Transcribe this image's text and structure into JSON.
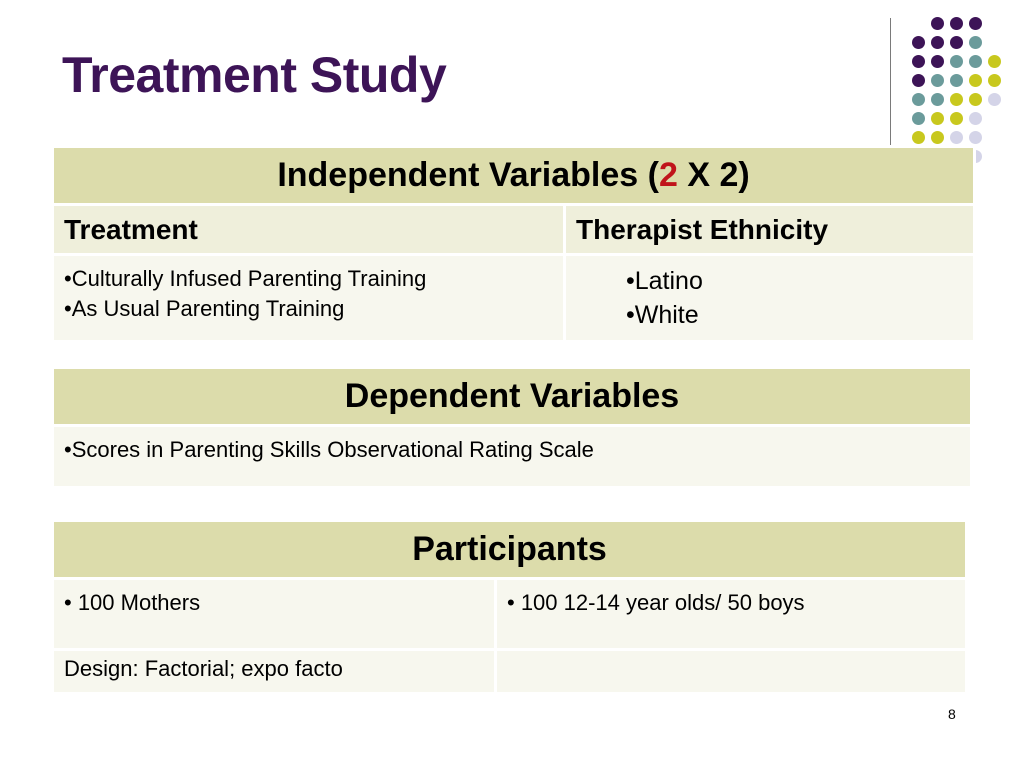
{
  "slide": {
    "title": "Treatment Study",
    "page_number": "8"
  },
  "independent_variables": {
    "header_prefix": "Independent Variables  (",
    "header_highlight": "2",
    "header_suffix": " X 2)",
    "columns": [
      {
        "label": "Treatment",
        "label_color": "#c0141b",
        "items": [
          "•Culturally Infused Parenting Training",
          "•As Usual Parenting Training"
        ]
      },
      {
        "label": "Therapist Ethnicity",
        "label_color": "#2e0f4a",
        "items": [
          "•Latino",
          "•White"
        ]
      }
    ]
  },
  "dependent_variables": {
    "header": "Dependent Variables",
    "items": [
      "•Scores in Parenting Skills Observational Rating Scale"
    ]
  },
  "participants": {
    "header": "Participants",
    "row1": [
      "• 100 Mothers",
      "• 100 12-14 year olds/ 50 boys"
    ],
    "row2": [
      "Design:  Factorial; expo facto",
      ""
    ]
  },
  "colors": {
    "title": "#3d1457",
    "header_bg": "#dcdcab",
    "row_bg": "#efefdb",
    "dot_purple": "#3d1457",
    "dot_teal": "#6b9b9b",
    "dot_yellow": "#c8c81e",
    "dot_lavender": "#d4d4e8"
  }
}
